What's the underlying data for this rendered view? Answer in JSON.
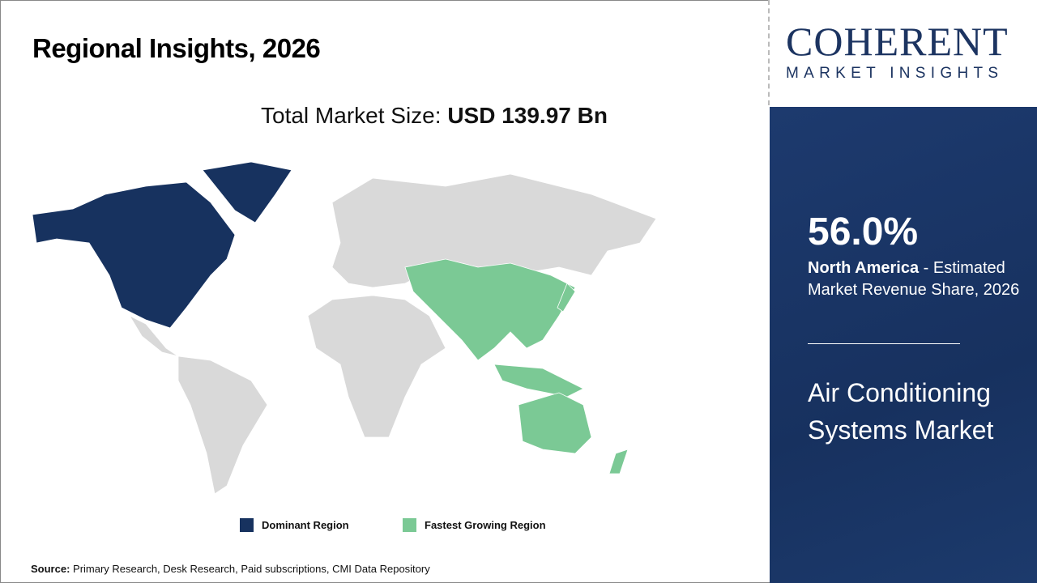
{
  "header": {
    "title": "Regional Insights, 2026",
    "total_label": "Total Market Size:",
    "total_value": "USD 139.97 Bn"
  },
  "logo": {
    "name": "COHERENT",
    "tagline": "MARKET INSIGHTS"
  },
  "panel": {
    "share": "56.0%",
    "region": "North America",
    "share_desc": " - Estimated Market Revenue Share, 2026",
    "market_name": "Air Conditioning Systems Market"
  },
  "legend": [
    {
      "label": "Dominant Region",
      "color": "#17325f"
    },
    {
      "label": "Fastest Growing Region",
      "color": "#7bc995"
    }
  ],
  "map": {
    "dominant_region": "North America",
    "fastest_growing_region": "Asia Pacific",
    "other_color": "#d9d9d9"
  },
  "source": {
    "label": "Source:",
    "text": " Primary Research, Desk Research, Paid subscriptions, CMI Data Repository"
  }
}
